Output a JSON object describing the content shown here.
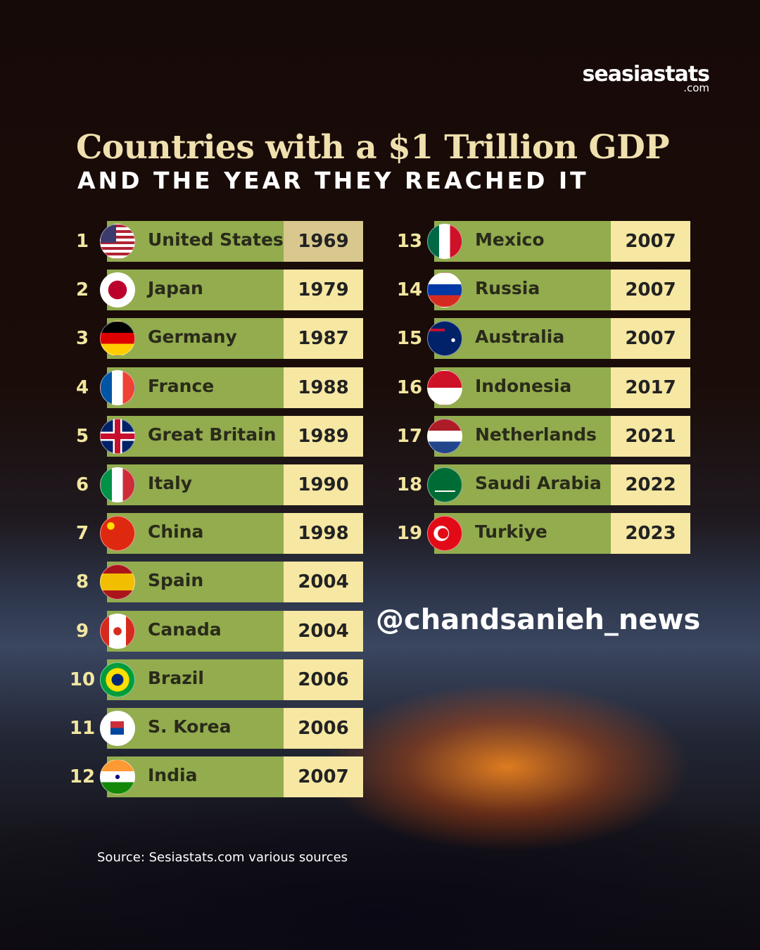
{
  "header": {
    "brand": "seasiastats",
    "brand_suffix": ".com",
    "title": "Countries with a $1 Trillion GDP",
    "subtitle": "AND THE YEAR THEY REACHED IT"
  },
  "table": {
    "rows": [
      [
        1,
        "United States",
        1969
      ],
      [
        2,
        "Japan",
        1979
      ],
      [
        3,
        "Germany",
        1987
      ],
      [
        4,
        "France",
        1988
      ],
      [
        5,
        "Great Britain",
        1989
      ],
      [
        6,
        "Italy",
        1990
      ],
      [
        7,
        "China",
        1998
      ],
      [
        8,
        "Spain",
        2004
      ],
      [
        9,
        "Canada",
        2004
      ],
      [
        10,
        "Brazil",
        2006
      ],
      [
        11,
        "S. Korea",
        2006
      ],
      [
        12,
        "India",
        2007
      ],
      [
        13,
        "Mexico",
        2007
      ],
      [
        14,
        "Russia",
        2007
      ],
      [
        15,
        "Australia",
        2007
      ],
      [
        16,
        "Indonesia",
        2017
      ],
      [
        17,
        "Netherlands",
        2021
      ],
      [
        18,
        "Saudi Arabia",
        2022
      ],
      [
        19,
        "Turkiye",
        2023
      ]
    ]
  },
  "watermark": "@chandsanieh_news",
  "footer": {
    "source": "Source: Sesiastats.com various sources"
  }
}
